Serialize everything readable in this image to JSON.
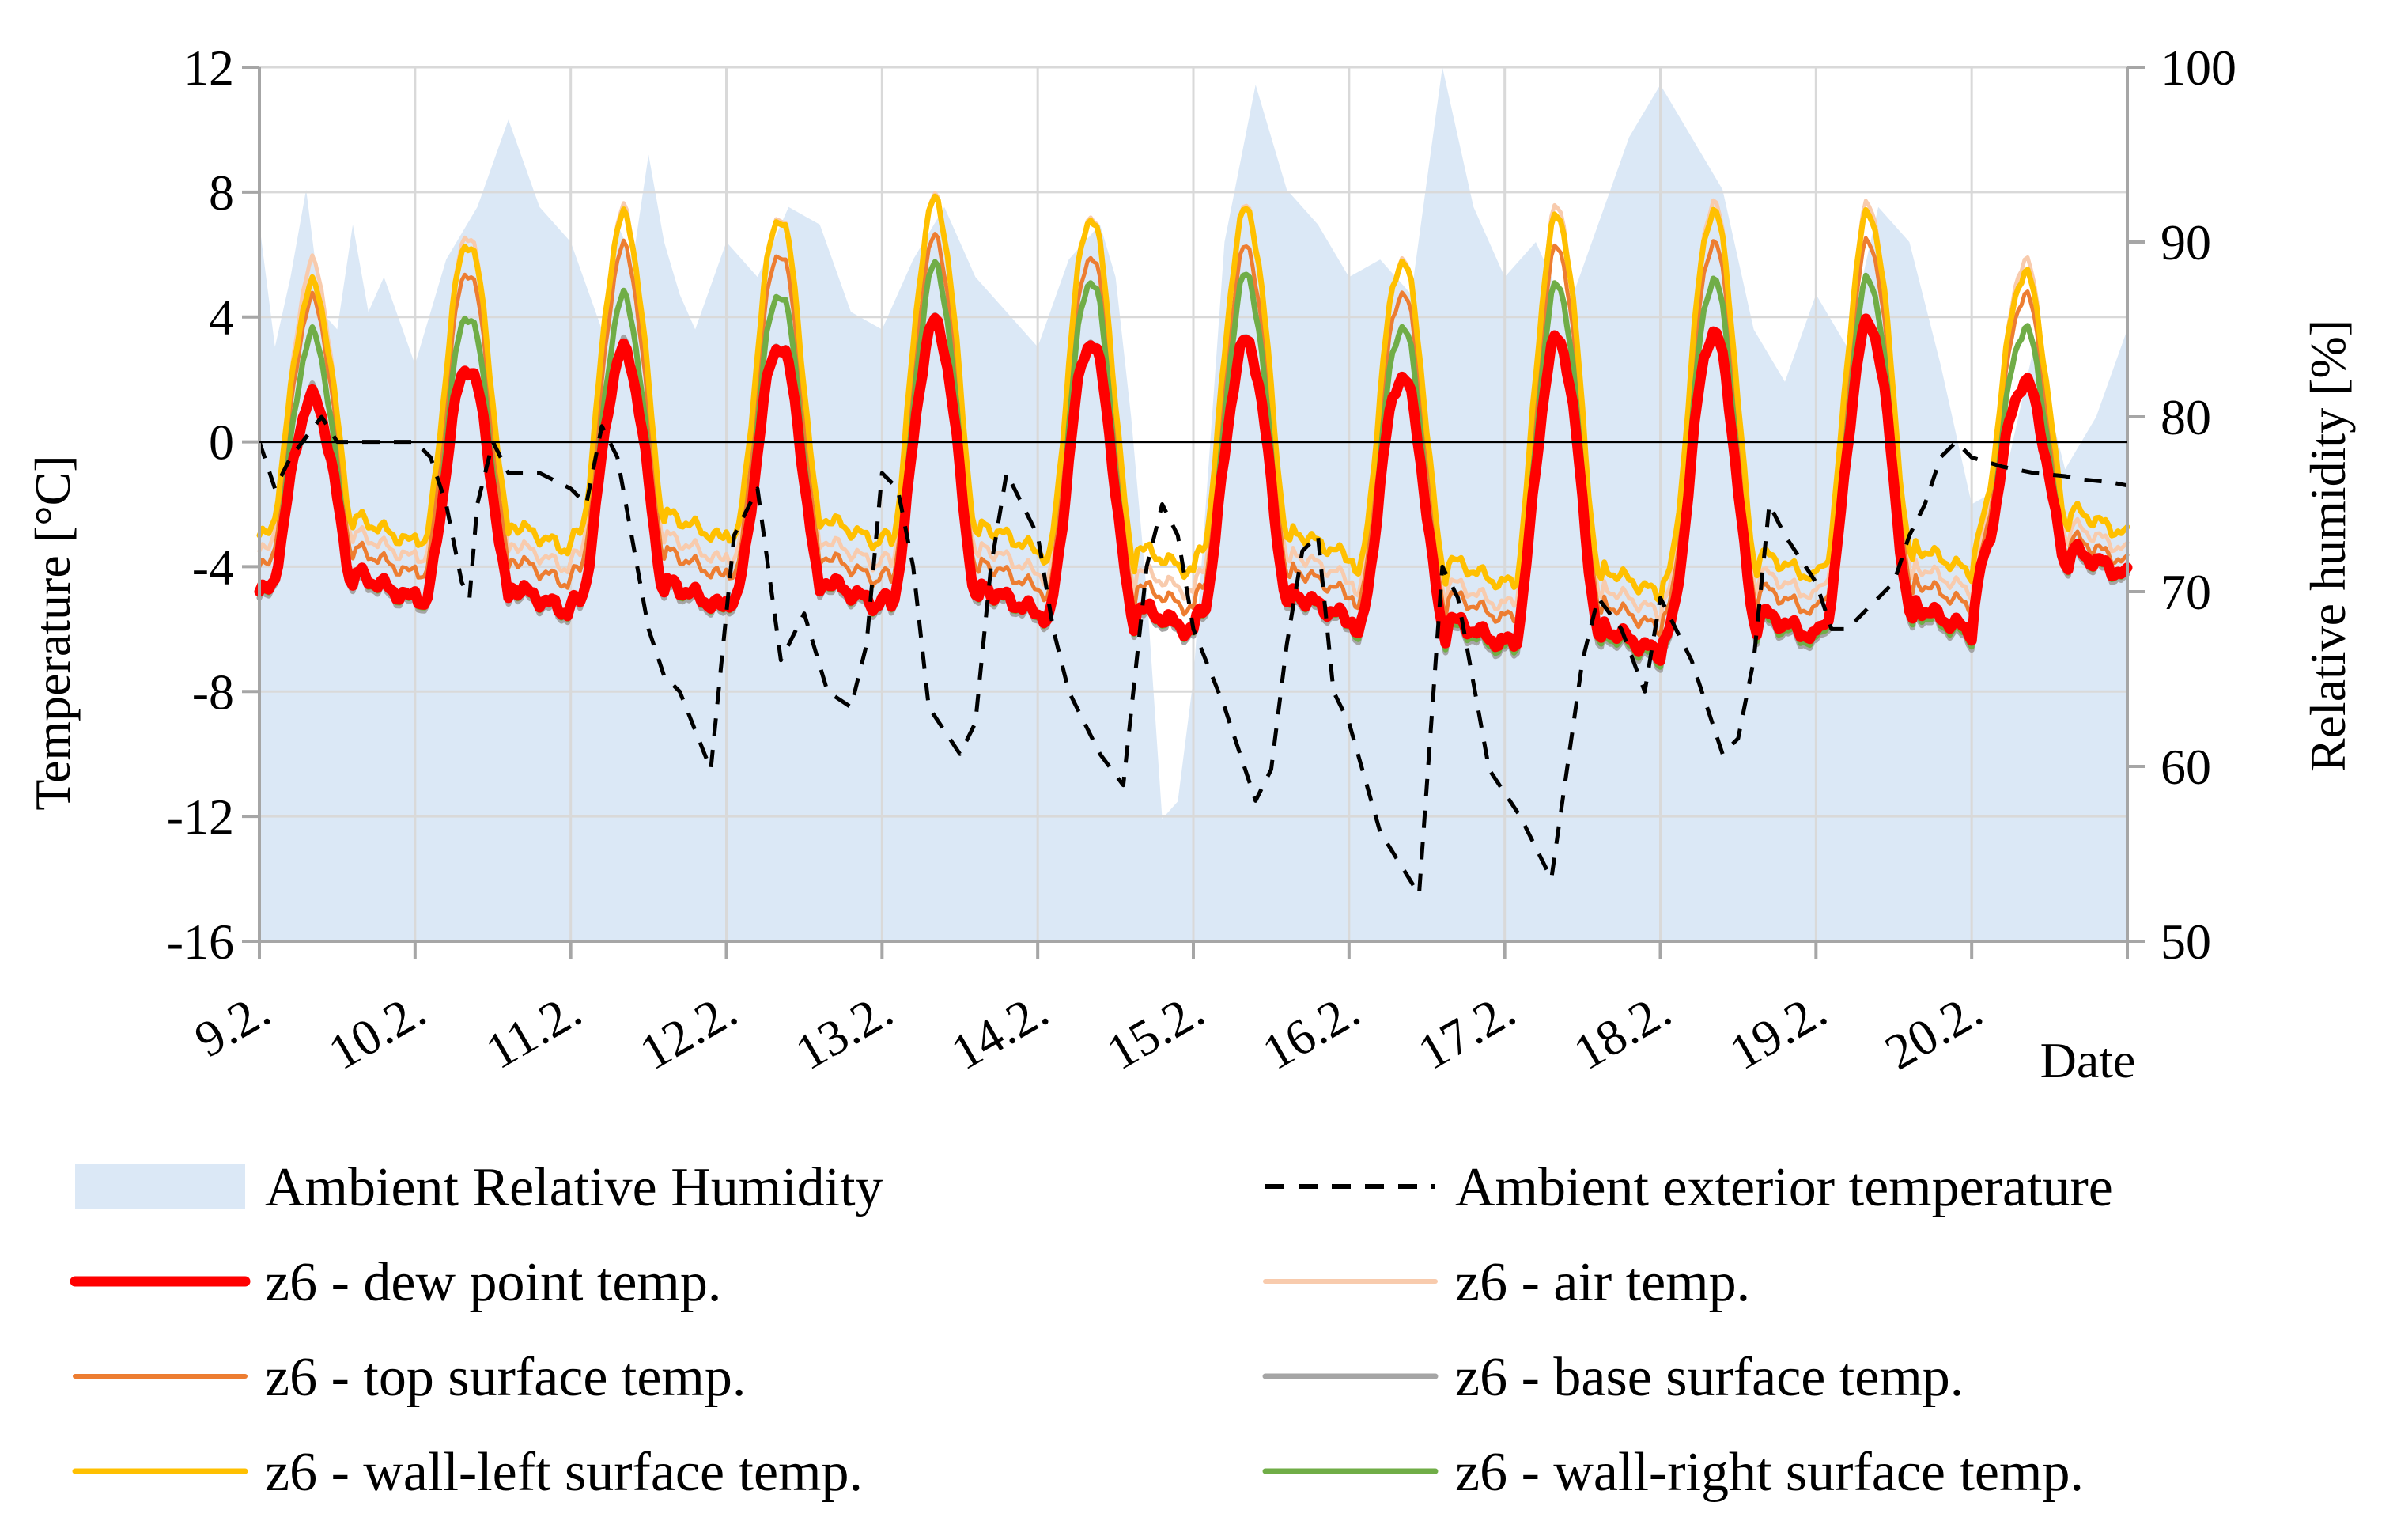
{
  "chart_data": {
    "type": "line",
    "title": "",
    "xlabel": "Date",
    "ylabel": "Temperature [°C]",
    "y2label": "Relative humidity [%]",
    "x_categories": [
      "9.2.",
      "10.2.",
      "11.2.",
      "12.2.",
      "13.2.",
      "14.2.",
      "15.2.",
      "16.2.",
      "17.2.",
      "18.2.",
      "19.2.",
      "20.2."
    ],
    "x_range": [
      0,
      12
    ],
    "ylim": [
      -16,
      12
    ],
    "yticks": [
      -16,
      -12,
      -8,
      -4,
      0,
      4,
      8,
      12
    ],
    "y2lim": [
      50,
      100
    ],
    "y2ticks": [
      50,
      60,
      70,
      80,
      90,
      100
    ],
    "grid": true,
    "legend_position": "bottom",
    "humidity": {
      "name": "Ambient Relative Humidity",
      "color": "#dbe8f6",
      "t": [
        0,
        0.1,
        0.2,
        0.3,
        0.4,
        0.5,
        0.6,
        0.7,
        0.8,
        1.0,
        1.2,
        1.4,
        1.6,
        1.8,
        2.0,
        2.2,
        2.3,
        2.4,
        2.5,
        2.6,
        2.7,
        2.8,
        3.0,
        3.2,
        3.4,
        3.6,
        3.8,
        4.0,
        4.2,
        4.4,
        4.6,
        4.8,
        5.0,
        5.2,
        5.4,
        5.5,
        5.6,
        5.7,
        5.8,
        5.9,
        6.0,
        6.2,
        6.4,
        6.6,
        6.8,
        7.0,
        7.2,
        7.4,
        7.6,
        7.8,
        8.0,
        8.2,
        8.4,
        8.6,
        8.8,
        9.0,
        9.2,
        9.4,
        9.6,
        9.8,
        10.0,
        10.2,
        10.4,
        10.6,
        10.8,
        11.0,
        11.2,
        11.4,
        11.6,
        11.8,
        12.0
      ],
      "values": [
        91,
        84,
        88,
        93,
        86,
        85,
        91,
        86,
        88,
        83,
        89,
        92,
        97,
        92,
        90,
        85,
        91,
        89,
        95,
        90,
        87,
        85,
        90,
        88,
        92,
        91,
        86,
        85,
        89,
        92,
        88,
        86,
        84,
        89,
        91,
        88,
        80,
        70,
        57,
        58,
        65,
        90,
        99,
        93,
        91,
        88,
        89,
        87,
        100,
        92,
        88,
        90,
        86,
        91,
        96,
        99,
        96,
        93,
        85,
        82,
        87,
        84,
        92,
        90,
        83,
        75,
        76,
        84,
        77,
        80,
        85
      ]
    },
    "series": [
      {
        "name": "Ambient exterior temperature",
        "color": "#000000",
        "width": 5,
        "dash": "22,18",
        "t": [
          0,
          0.1,
          0.2,
          0.4,
          0.5,
          0.7,
          1.0,
          1.1,
          1.2,
          1.3,
          1.35,
          1.4,
          1.5,
          1.6,
          1.8,
          2.0,
          2.1,
          2.2,
          2.3,
          2.5,
          2.6,
          2.7,
          2.9,
          3.05,
          3.2,
          3.35,
          3.5,
          3.65,
          3.8,
          3.9,
          4.0,
          4.1,
          4.2,
          4.3,
          4.5,
          4.6,
          4.7,
          4.8,
          5.0,
          5.1,
          5.2,
          5.4,
          5.55,
          5.7,
          5.8,
          5.9,
          6.0,
          6.2,
          6.4,
          6.5,
          6.6,
          6.7,
          6.8,
          6.9,
          7.0,
          7.2,
          7.45,
          7.6,
          7.7,
          7.9,
          8.1,
          8.3,
          8.5,
          8.6,
          8.75,
          8.9,
          9.0,
          9.2,
          9.4,
          9.5,
          9.6,
          9.7,
          9.8,
          10.0,
          10.1,
          10.2,
          10.3,
          10.5,
          10.6,
          10.7,
          10.8,
          10.9,
          11.0,
          11.2,
          11.4,
          11.6,
          11.7,
          11.9,
          12.0
        ],
        "values": [
          0,
          -1.5,
          -0.5,
          0.8,
          0,
          0,
          0,
          -0.5,
          -2,
          -4.5,
          -5,
          -2,
          0,
          -1,
          -1,
          -1.5,
          -2,
          0.5,
          -0.5,
          -6,
          -7.5,
          -8,
          -10.5,
          -3,
          -1.5,
          -7,
          -5.5,
          -8,
          -8.5,
          -6.5,
          -1,
          -1.5,
          -4,
          -8.5,
          -10,
          -9,
          -4,
          -1,
          -3,
          -6,
          -8,
          -10,
          -11,
          -4,
          -2,
          -3,
          -6,
          -8.5,
          -11.5,
          -10.5,
          -6.5,
          -3.5,
          -3,
          -8,
          -9,
          -12.5,
          -14.5,
          -4,
          -5,
          -10.5,
          -12,
          -14,
          -7,
          -5,
          -6,
          -8,
          -5,
          -7,
          -10,
          -9.5,
          -7,
          -2,
          -3,
          -4.5,
          -6,
          -6,
          -5.5,
          -4.5,
          -3,
          -2,
          -0.5,
          0,
          -0.5,
          -0.8,
          -1,
          -1.1,
          -1.2,
          -1.3,
          -1.4
        ]
      },
      {
        "name": "z6 - dew point temp.",
        "color": "#ff0000",
        "width": 13,
        "base": [
          -4.8,
          -5.2,
          -5.1,
          -5,
          -5.2,
          -5.8,
          -5.4,
          -6.2,
          -6.5,
          -6.0,
          -5.8,
          -4.0,
          -4.0
        ],
        "amp": [
          6.2,
          7.6,
          8.0,
          8.1,
          9.0,
          9.0,
          8.6,
          8.3,
          9.8,
          9.5,
          9.6,
          5.9,
          5.9
        ]
      },
      {
        "name": "z6 - air temp.",
        "color": "#f8cbad",
        "width": 5,
        "base": [
          -3.5,
          -3.8,
          -3.6,
          -3.7,
          -3.9,
          -4.6,
          -4.1,
          -5.0,
          -5.2,
          -4.7,
          -4.5,
          -3.2,
          -3.2
        ],
        "amp": [
          9.2,
          10.5,
          11.0,
          11.0,
          11.7,
          11.9,
          11.6,
          10.9,
          12.7,
          12.4,
          12.1,
          9.0,
          9.0
        ]
      },
      {
        "name": "z6 - top surface temp.",
        "color": "#ed7d31",
        "width": 5,
        "base": [
          -4.0,
          -4.3,
          -4.1,
          -4.2,
          -4.4,
          -5.1,
          -4.6,
          -5.4,
          -5.7,
          -5.2,
          -5.0,
          -3.6,
          -3.6
        ],
        "amp": [
          8.5,
          9.8,
          10.3,
          10.3,
          10.9,
          11.1,
          10.8,
          10.2,
          11.9,
          11.6,
          11.4,
          8.3,
          8.3
        ]
      },
      {
        "name": "z6 - base surface temp.",
        "color": "#a5a5a5",
        "width": 7,
        "base": [
          -5.0,
          -5.4,
          -5.3,
          -5.2,
          -5.4,
          -6.0,
          -5.6,
          -6.5,
          -6.8,
          -6.3,
          -6.1,
          -4.2,
          -4.2
        ],
        "amp": [
          6.6,
          7.8,
          8.4,
          8.4,
          9.3,
          9.3,
          8.9,
          8.6,
          10.1,
          9.8,
          9.9,
          6.2,
          6.2
        ]
      },
      {
        "name": "z6 - wall-left surface temp.",
        "color": "#ffc000",
        "width": 7,
        "base": [
          -3.0,
          -3.2,
          -2.9,
          -3.0,
          -3.2,
          -3.9,
          -3.4,
          -4.3,
          -4.6,
          -4.1,
          -3.9,
          -2.7,
          -2.7
        ],
        "amp": [
          8.0,
          9.6,
          10.1,
          10.2,
          10.9,
          11.1,
          10.8,
          10.1,
          11.8,
          11.5,
          11.2,
          8.1,
          8.1
        ]
      },
      {
        "name": "z6 - wall-right surface temp.",
        "color": "#70ad47",
        "width": 7,
        "base": [
          -4.9,
          -5.3,
          -5.2,
          -5.1,
          -5.3,
          -5.9,
          -5.5,
          -6.4,
          -6.7,
          -6.2,
          -6.0,
          -4.1,
          -4.1
        ],
        "amp": [
          8.3,
          9.4,
          9.8,
          9.9,
          10.9,
          11.1,
          10.8,
          10.1,
          11.7,
          11.4,
          11.2,
          7.7,
          7.7
        ]
      }
    ],
    "legend": [
      {
        "label": "Ambient Relative Humidity",
        "kind": "area",
        "color": "#dbe8f6"
      },
      {
        "label": "Ambient exterior temperature",
        "kind": "dash",
        "color": "#000000"
      },
      {
        "label": "z6 - dew point temp.",
        "kind": "line",
        "color": "#ff0000",
        "width": 13
      },
      {
        "label": "z6 - air temp.",
        "kind": "line",
        "color": "#f8cbad",
        "width": 6
      },
      {
        "label": "z6 - top surface temp.",
        "kind": "line",
        "color": "#ed7d31",
        "width": 6
      },
      {
        "label": "z6 - base surface temp.",
        "kind": "line",
        "color": "#a5a5a5",
        "width": 7
      },
      {
        "label": "z6 - wall-left surface temp.",
        "kind": "line",
        "color": "#ffc000",
        "width": 7
      },
      {
        "label": "z6 - wall-right surface temp.",
        "kind": "line",
        "color": "#70ad47",
        "width": 7
      }
    ]
  }
}
